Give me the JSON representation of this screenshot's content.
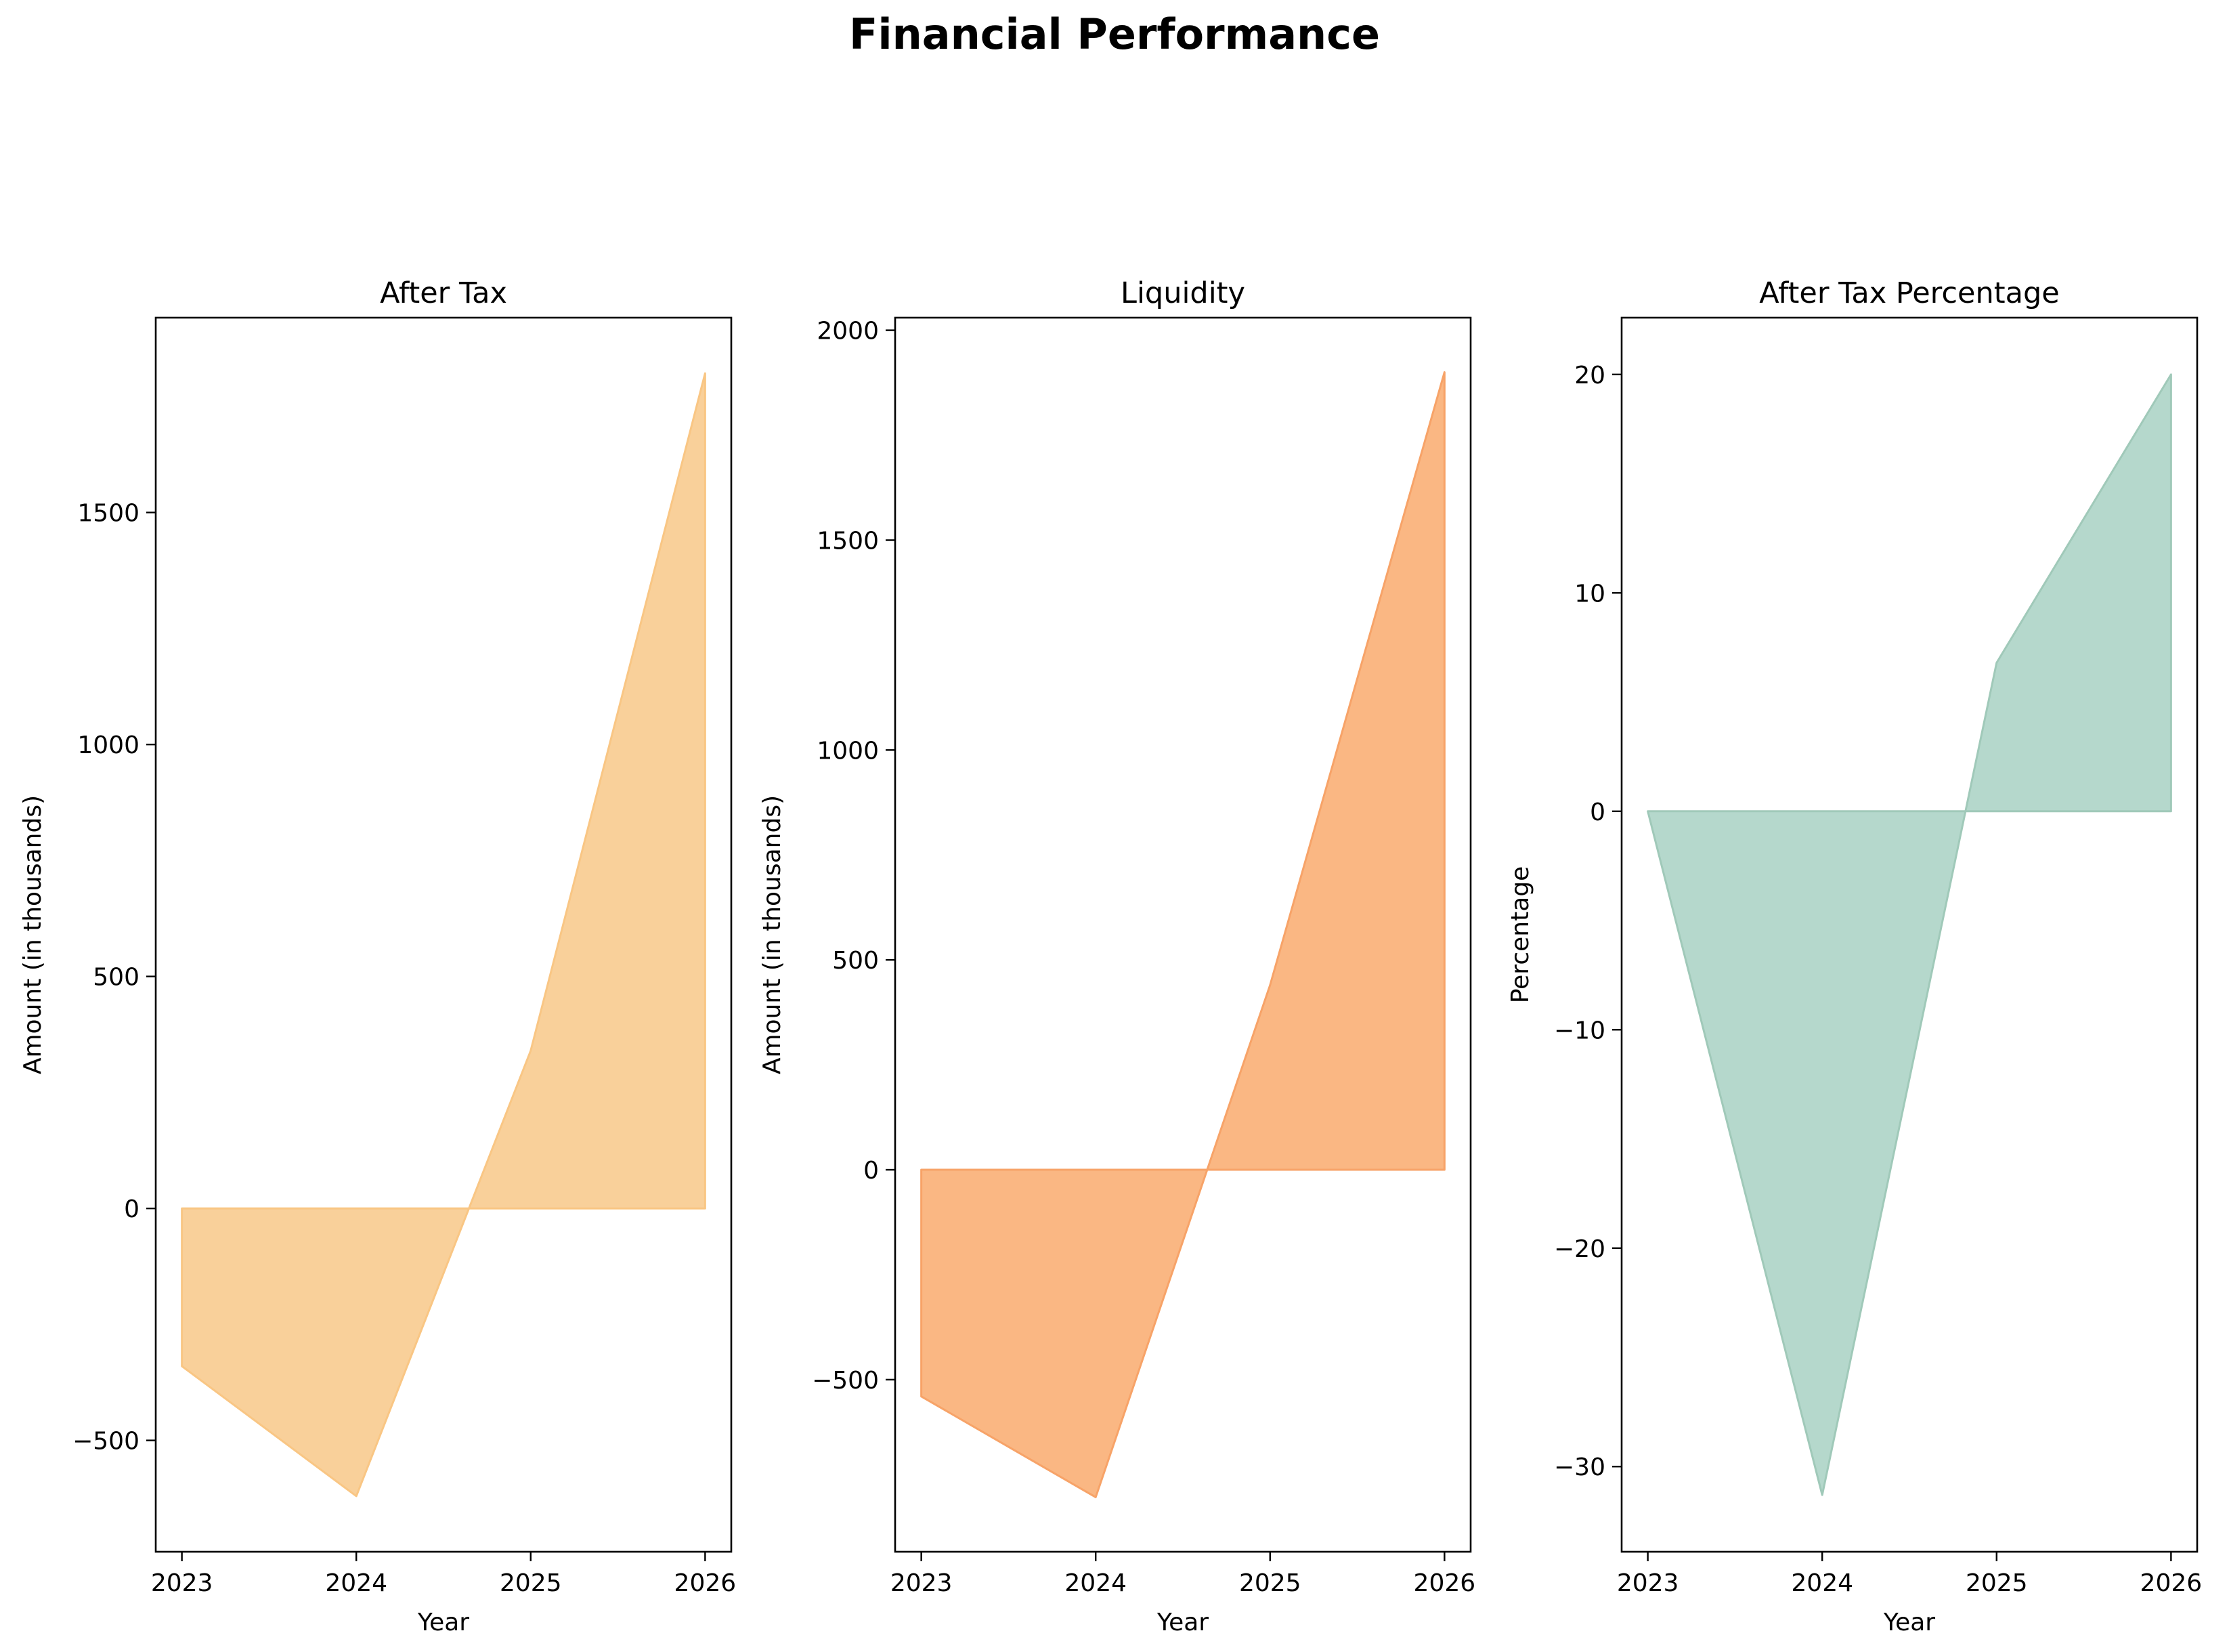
{
  "figure": {
    "title": "Financial Performance"
  },
  "chart_data": [
    {
      "type": "area",
      "title": "After Tax",
      "xlabel": "Year",
      "ylabel": "Amount (in thousands)",
      "x": [
        2023,
        2024,
        2025,
        2026
      ],
      "series": [
        {
          "values": [
            -340,
            -620,
            340,
            1800
          ]
        }
      ],
      "xlim": [
        2022.85,
        2026.15
      ],
      "ylim": [
        -740,
        1920
      ],
      "yticks": [
        -500,
        0,
        500,
        1000,
        1500
      ],
      "ytick_labels": [
        "−500",
        "0",
        "500",
        "1000",
        "1500"
      ],
      "xticks": [
        2023,
        2024,
        2025,
        2026
      ],
      "xtick_labels": [
        "2023",
        "2024",
        "2025",
        "2026"
      ],
      "color": "#f9d09a",
      "edge_color": "#f9c684",
      "grid": false
    },
    {
      "type": "area",
      "title": "Liquidity",
      "xlabel": "Year",
      "ylabel": "Amount (in thousands)",
      "x": [
        2023,
        2024,
        2025,
        2026
      ],
      "series": [
        {
          "values": [
            -540,
            -780,
            440,
            1900
          ]
        }
      ],
      "xlim": [
        2022.85,
        2026.15
      ],
      "ylim": [
        -910,
        2030
      ],
      "yticks": [
        -500,
        0,
        500,
        1000,
        1500,
        2000
      ],
      "ytick_labels": [
        "−500",
        "0",
        "500",
        "1000",
        "1500",
        "2000"
      ],
      "xticks": [
        2023,
        2024,
        2025,
        2026
      ],
      "xtick_labels": [
        "2023",
        "2024",
        "2025",
        "2026"
      ],
      "color": "#fab783",
      "edge_color": "#f7a368",
      "grid": false
    },
    {
      "type": "area",
      "title": "After Tax Percentage",
      "xlabel": "Year",
      "ylabel": "Percentage",
      "x": [
        2023,
        2024,
        2025,
        2026
      ],
      "series": [
        {
          "values": [
            0,
            -31.3,
            6.8,
            20
          ]
        }
      ],
      "xlim": [
        2022.85,
        2026.15
      ],
      "ylim": [
        -33.9,
        22.6
      ],
      "yticks": [
        -30,
        -20,
        -10,
        0,
        10,
        20
      ],
      "ytick_labels": [
        "−30",
        "−20",
        "−10",
        "0",
        "10",
        "20"
      ],
      "xticks": [
        2023,
        2024,
        2025,
        2026
      ],
      "xtick_labels": [
        "2023",
        "2024",
        "2025",
        "2026"
      ],
      "color": "#b5d8cc",
      "edge_color": "#a0c9b9",
      "grid": false
    }
  ]
}
